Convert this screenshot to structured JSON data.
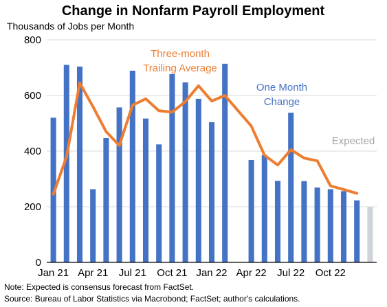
{
  "chart_data": {
    "type": "bar",
    "title": "Change in Nonfarm Payroll Employment",
    "subtitle": "Thousands of Jobs per Month",
    "x_tick_labels": [
      "Jan 21",
      "Apr 21",
      "Jul 21",
      "Oct 21",
      "Jan 22",
      "Apr 22",
      "Jul 22",
      "Oct 22"
    ],
    "y_tick_labels": [
      "0",
      "200",
      "400",
      "600",
      "800"
    ],
    "ylim": [
      0,
      800
    ],
    "grid": true,
    "categories": [
      "Jan 21",
      "Feb 21",
      "Mar 21",
      "Apr 21",
      "May 21",
      "Jun 21",
      "Jul 21",
      "Aug 21",
      "Sep 21",
      "Oct 21",
      "Nov 21",
      "Dec 21",
      "Jan 22",
      "Feb 22",
      "Mar 22",
      "Apr 22",
      "May 22",
      "Jun 22",
      "Jul 22",
      "Aug 22",
      "Sep 22",
      "Oct 22",
      "Nov 22",
      "Dec 22",
      "Jan 23"
    ],
    "series": [
      {
        "name": "One Month Change",
        "kind": "bar",
        "color": "#4472C4",
        "values": [
          520,
          710,
          704,
          263,
          447,
          557,
          689,
          517,
          424,
          677,
          647,
          588,
          504,
          714,
          null,
          368,
          386,
          293,
          538,
          292,
          269,
          263,
          256,
          223,
          null
        ]
      },
      {
        "name": "Three-month Trailing Average",
        "kind": "line",
        "color": "#ED7D31",
        "values": [
          245,
          380,
          645,
          560,
          470,
          420,
          565,
          588,
          545,
          540,
          578,
          635,
          580,
          600,
          545,
          490,
          385,
          350,
          405,
          375,
          365,
          275,
          262,
          248,
          null
        ]
      },
      {
        "name": "Expected",
        "kind": "bar",
        "color": "#D0D3DC",
        "values": [
          null,
          null,
          null,
          null,
          null,
          null,
          null,
          null,
          null,
          null,
          null,
          null,
          null,
          null,
          null,
          null,
          null,
          null,
          null,
          null,
          null,
          null,
          null,
          null,
          200
        ]
      }
    ],
    "annotations": {
      "avg_line1": "Three-month",
      "avg_line2": "Trailing Average",
      "bar_line1": "One Month",
      "bar_line2": "Change",
      "expected": "Expected"
    },
    "colors": {
      "bars": "#4472C4",
      "line": "#ED7D31",
      "expected": "#D0D3DC",
      "expected_text": "#A6A6A6"
    },
    "notes": [
      "Note:  Expected is consensus forecast from FactSet.",
      "Source: Bureau of Labor Statistics via Macrobond; FactSet; author's calculations."
    ]
  }
}
